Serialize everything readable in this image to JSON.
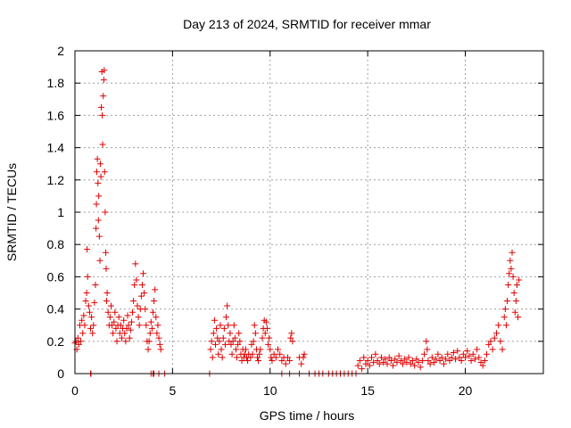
{
  "chart_data": {
    "type": "scatter",
    "title": "Day 213 of 2024, SRMTID for receiver mmar",
    "xlabel": "GPS time / hours",
    "ylabel": "SRMTID / TECUs",
    "xlim": [
      0,
      24
    ],
    "ylim": [
      0,
      2
    ],
    "xticks": [
      0,
      5,
      10,
      15,
      20
    ],
    "yticks": [
      0,
      0.2,
      0.4,
      0.6,
      0.8,
      1,
      1.2,
      1.4,
      1.6,
      1.8,
      2
    ],
    "xtick_labels": [
      "0",
      "5",
      "10",
      "15",
      "20"
    ],
    "ytick_labels": [
      "0",
      "0.2",
      "0.4",
      "0.6",
      "0.8",
      "1",
      "1.2",
      "1.4",
      "1.6",
      "1.8",
      "2"
    ],
    "grid": true,
    "marker": "+",
    "color": "#e00000",
    "series": [
      {
        "name": "SRMTID",
        "points": [
          [
            0.0,
            0.19
          ],
          [
            0.05,
            0.2
          ],
          [
            0.1,
            0.15
          ],
          [
            0.15,
            0.22
          ],
          [
            0.2,
            0.18
          ],
          [
            0.25,
            0.3
          ],
          [
            0.3,
            0.2
          ],
          [
            0.35,
            0.33
          ],
          [
            0.4,
            0.25
          ],
          [
            0.45,
            0.36
          ],
          [
            0.5,
            0.3
          ],
          [
            0.55,
            0.45
          ],
          [
            0.6,
            0.5
          ],
          [
            0.62,
            0.77
          ],
          [
            0.65,
            0.6
          ],
          [
            0.7,
            0.42
          ],
          [
            0.75,
            0.38
          ],
          [
            0.8,
            0.28
          ],
          [
            0.85,
            0.35
          ],
          [
            0.9,
            0.25
          ],
          [
            0.95,
            0.3
          ],
          [
            1.0,
            0.44
          ],
          [
            1.05,
            0.55
          ],
          [
            1.08,
            0.9
          ],
          [
            1.1,
            1.05
          ],
          [
            1.12,
            1.25
          ],
          [
            1.15,
            1.33
          ],
          [
            1.18,
            1.18
          ],
          [
            1.2,
            0.95
          ],
          [
            1.22,
            1.1
          ],
          [
            1.25,
            0.85
          ],
          [
            1.28,
            0.7
          ],
          [
            1.3,
            1.3
          ],
          [
            1.33,
            1.22
          ],
          [
            1.35,
            1.65
          ],
          [
            1.38,
            1.87
          ],
          [
            1.4,
            1.6
          ],
          [
            1.42,
            1.42
          ],
          [
            1.45,
            1.72
          ],
          [
            1.48,
            1.82
          ],
          [
            1.5,
            1.88
          ],
          [
            1.52,
            1.25
          ],
          [
            1.55,
            1.0
          ],
          [
            1.58,
            0.75
          ],
          [
            1.6,
            0.65
          ],
          [
            1.62,
            0.45
          ],
          [
            1.65,
            0.5
          ],
          [
            1.7,
            0.38
          ],
          [
            1.75,
            0.3
          ],
          [
            1.8,
            0.35
          ],
          [
            1.85,
            0.42
          ],
          [
            1.9,
            0.3
          ],
          [
            1.95,
            0.25
          ],
          [
            2.0,
            0.32
          ],
          [
            2.05,
            0.38
          ],
          [
            2.1,
            0.28
          ],
          [
            2.15,
            0.2
          ],
          [
            2.2,
            0.3
          ],
          [
            2.25,
            0.35
          ],
          [
            2.3,
            0.25
          ],
          [
            2.35,
            0.3
          ],
          [
            2.4,
            0.22
          ],
          [
            2.45,
            0.28
          ],
          [
            2.5,
            0.33
          ],
          [
            2.55,
            0.25
          ],
          [
            2.6,
            0.2
          ],
          [
            2.65,
            0.28
          ],
          [
            2.7,
            0.36
          ],
          [
            2.75,
            0.3
          ],
          [
            2.8,
            0.22
          ],
          [
            2.85,
            0.27
          ],
          [
            2.9,
            0.32
          ],
          [
            2.95,
            0.38
          ],
          [
            3.0,
            0.45
          ],
          [
            3.05,
            0.55
          ],
          [
            3.1,
            0.68
          ],
          [
            3.15,
            0.58
          ],
          [
            3.2,
            0.42
          ],
          [
            3.25,
            0.35
          ],
          [
            3.3,
            0.3
          ],
          [
            3.35,
            0.4
          ],
          [
            3.4,
            0.48
          ],
          [
            3.45,
            0.55
          ],
          [
            3.5,
            0.62
          ],
          [
            3.55,
            0.5
          ],
          [
            3.6,
            0.4
          ],
          [
            3.65,
            0.3
          ],
          [
            3.7,
            0.2
          ],
          [
            3.75,
            0.15
          ],
          [
            3.8,
            0.2
          ],
          [
            3.85,
            0.25
          ],
          [
            3.9,
            0.32
          ],
          [
            3.95,
            0.28
          ],
          [
            4.0,
            0.38
          ],
          [
            4.05,
            0.45
          ],
          [
            4.1,
            0.52
          ],
          [
            4.15,
            0.35
          ],
          [
            4.2,
            0.25
          ],
          [
            4.25,
            0.3
          ],
          [
            4.3,
            0.22
          ],
          [
            4.35,
            0.18
          ],
          [
            4.4,
            0.15
          ],
          [
            0.8,
            0.0
          ],
          [
            0.82,
            0.0
          ],
          [
            3.9,
            0.0
          ],
          [
            4.0,
            0.0
          ],
          [
            4.05,
            0.0
          ],
          [
            4.3,
            0.0
          ],
          [
            4.6,
            0.0
          ],
          [
            6.9,
            0.0
          ],
          [
            6.95,
            0.15
          ],
          [
            7.0,
            0.2
          ],
          [
            7.05,
            0.1
          ],
          [
            7.1,
            0.25
          ],
          [
            7.15,
            0.33
          ],
          [
            7.2,
            0.18
          ],
          [
            7.25,
            0.28
          ],
          [
            7.3,
            0.22
          ],
          [
            7.35,
            0.12
          ],
          [
            7.4,
            0.2
          ],
          [
            7.45,
            0.3
          ],
          [
            7.5,
            0.15
          ],
          [
            7.55,
            0.1
          ],
          [
            7.6,
            0.22
          ],
          [
            7.65,
            0.28
          ],
          [
            7.7,
            0.18
          ],
          [
            7.75,
            0.35
          ],
          [
            7.8,
            0.42
          ],
          [
            7.85,
            0.3
          ],
          [
            7.9,
            0.2
          ],
          [
            7.95,
            0.25
          ],
          [
            8.0,
            0.18
          ],
          [
            8.05,
            0.12
          ],
          [
            8.1,
            0.2
          ],
          [
            8.15,
            0.3
          ],
          [
            8.2,
            0.22
          ],
          [
            8.25,
            0.15
          ],
          [
            8.3,
            0.1
          ],
          [
            8.35,
            0.18
          ],
          [
            8.4,
            0.25
          ],
          [
            8.45,
            0.2
          ],
          [
            8.5,
            0.12
          ],
          [
            8.55,
            0.08
          ],
          [
            8.6,
            0.15
          ],
          [
            8.65,
            0.1
          ],
          [
            8.7,
            0.12
          ],
          [
            8.75,
            0.15
          ],
          [
            8.8,
            0.1
          ],
          [
            8.85,
            0.08
          ],
          [
            8.9,
            0.12
          ],
          [
            9.0,
            0.1
          ],
          [
            9.05,
            0.18
          ],
          [
            9.1,
            0.12
          ],
          [
            9.15,
            0.2
          ],
          [
            9.2,
            0.3
          ],
          [
            9.25,
            0.25
          ],
          [
            9.3,
            0.15
          ],
          [
            9.35,
            0.1
          ],
          [
            9.4,
            0.08
          ],
          [
            9.45,
            0.12
          ],
          [
            9.5,
            0.15
          ],
          [
            9.6,
            0.22
          ],
          [
            9.65,
            0.28
          ],
          [
            9.7,
            0.33
          ],
          [
            9.75,
            0.25
          ],
          [
            9.8,
            0.32
          ],
          [
            9.85,
            0.28
          ],
          [
            9.9,
            0.18
          ],
          [
            9.95,
            0.22
          ],
          [
            10.0,
            0.15
          ],
          [
            10.05,
            0.1
          ],
          [
            10.1,
            0.08
          ],
          [
            10.2,
            0.12
          ],
          [
            10.3,
            0.1
          ],
          [
            10.4,
            0.15
          ],
          [
            10.5,
            0.12
          ],
          [
            10.6,
            0.08
          ],
          [
            10.7,
            0.1
          ],
          [
            10.8,
            0.06
          ],
          [
            10.9,
            0.1
          ],
          [
            11.0,
            0.08
          ],
          [
            11.05,
            0.22
          ],
          [
            11.1,
            0.25
          ],
          [
            11.15,
            0.2
          ],
          [
            11.5,
            0.1
          ],
          [
            11.6,
            0.06
          ],
          [
            11.7,
            0.1
          ],
          [
            11.75,
            0.12
          ],
          [
            10.6,
            0.0
          ],
          [
            11.0,
            0.0
          ],
          [
            11.5,
            0.0
          ],
          [
            12.0,
            0.0
          ],
          [
            12.3,
            0.0
          ],
          [
            12.5,
            0.0
          ],
          [
            12.7,
            0.0
          ],
          [
            13.0,
            0.0
          ],
          [
            13.2,
            0.0
          ],
          [
            13.4,
            0.0
          ],
          [
            13.6,
            0.0
          ],
          [
            13.8,
            0.0
          ],
          [
            14.0,
            0.0
          ],
          [
            14.2,
            0.0
          ],
          [
            14.4,
            0.0
          ],
          [
            14.5,
            0.05
          ],
          [
            14.6,
            0.08
          ],
          [
            14.7,
            0.03
          ],
          [
            14.8,
            0.1
          ],
          [
            14.9,
            0.06
          ],
          [
            15.0,
            0.08
          ],
          [
            15.1,
            0.05
          ],
          [
            15.2,
            0.1
          ],
          [
            15.3,
            0.07
          ],
          [
            15.4,
            0.12
          ],
          [
            15.5,
            0.08
          ],
          [
            15.6,
            0.06
          ],
          [
            15.7,
            0.1
          ],
          [
            15.8,
            0.07
          ],
          [
            15.9,
            0.09
          ],
          [
            16.0,
            0.06
          ],
          [
            16.1,
            0.1
          ],
          [
            16.2,
            0.08
          ],
          [
            16.3,
            0.05
          ],
          [
            16.4,
            0.09
          ],
          [
            16.5,
            0.07
          ],
          [
            16.6,
            0.11
          ],
          [
            16.7,
            0.08
          ],
          [
            16.8,
            0.06
          ],
          [
            16.9,
            0.09
          ],
          [
            17.0,
            0.07
          ],
          [
            17.1,
            0.1
          ],
          [
            17.2,
            0.06
          ],
          [
            17.3,
            0.08
          ],
          [
            17.4,
            0.05
          ],
          [
            17.5,
            0.09
          ],
          [
            17.6,
            0.07
          ],
          [
            17.7,
            0.04
          ],
          [
            17.8,
            0.08
          ],
          [
            17.9,
            0.12
          ],
          [
            18.0,
            0.2
          ],
          [
            18.05,
            0.15
          ],
          [
            18.1,
            0.08
          ],
          [
            18.2,
            0.06
          ],
          [
            18.3,
            0.1
          ],
          [
            18.4,
            0.07
          ],
          [
            18.5,
            0.09
          ],
          [
            18.6,
            0.12
          ],
          [
            18.7,
            0.08
          ],
          [
            18.8,
            0.1
          ],
          [
            18.9,
            0.06
          ],
          [
            19.0,
            0.09
          ],
          [
            19.1,
            0.12
          ],
          [
            19.2,
            0.08
          ],
          [
            19.3,
            0.1
          ],
          [
            19.4,
            0.13
          ],
          [
            19.5,
            0.09
          ],
          [
            19.6,
            0.14
          ],
          [
            19.7,
            0.1
          ],
          [
            19.8,
            0.08
          ],
          [
            19.9,
            0.12
          ],
          [
            20.0,
            0.1
          ],
          [
            20.1,
            0.14
          ],
          [
            20.2,
            0.11
          ],
          [
            20.3,
            0.08
          ],
          [
            20.4,
            0.12
          ],
          [
            20.5,
            0.09
          ],
          [
            20.6,
            0.15
          ],
          [
            20.7,
            0.1
          ],
          [
            20.8,
            0.07
          ],
          [
            20.9,
            0.05
          ],
          [
            21.0,
            0.08
          ],
          [
            21.1,
            0.12
          ],
          [
            21.2,
            0.18
          ],
          [
            21.3,
            0.2
          ],
          [
            21.4,
            0.15
          ],
          [
            21.5,
            0.22
          ],
          [
            21.6,
            0.25
          ],
          [
            21.7,
            0.3
          ],
          [
            21.8,
            0.2
          ],
          [
            21.9,
            0.15
          ],
          [
            22.0,
            0.35
          ],
          [
            22.05,
            0.4
          ],
          [
            22.1,
            0.3
          ],
          [
            22.15,
            0.45
          ],
          [
            22.2,
            0.55
          ],
          [
            22.25,
            0.62
          ],
          [
            22.3,
            0.7
          ],
          [
            22.35,
            0.65
          ],
          [
            22.4,
            0.75
          ],
          [
            22.45,
            0.6
          ],
          [
            22.5,
            0.5
          ],
          [
            22.55,
            0.38
          ],
          [
            22.6,
            0.45
          ],
          [
            22.65,
            0.55
          ],
          [
            22.7,
            0.35
          ],
          [
            22.75,
            0.58
          ]
        ]
      }
    ]
  }
}
